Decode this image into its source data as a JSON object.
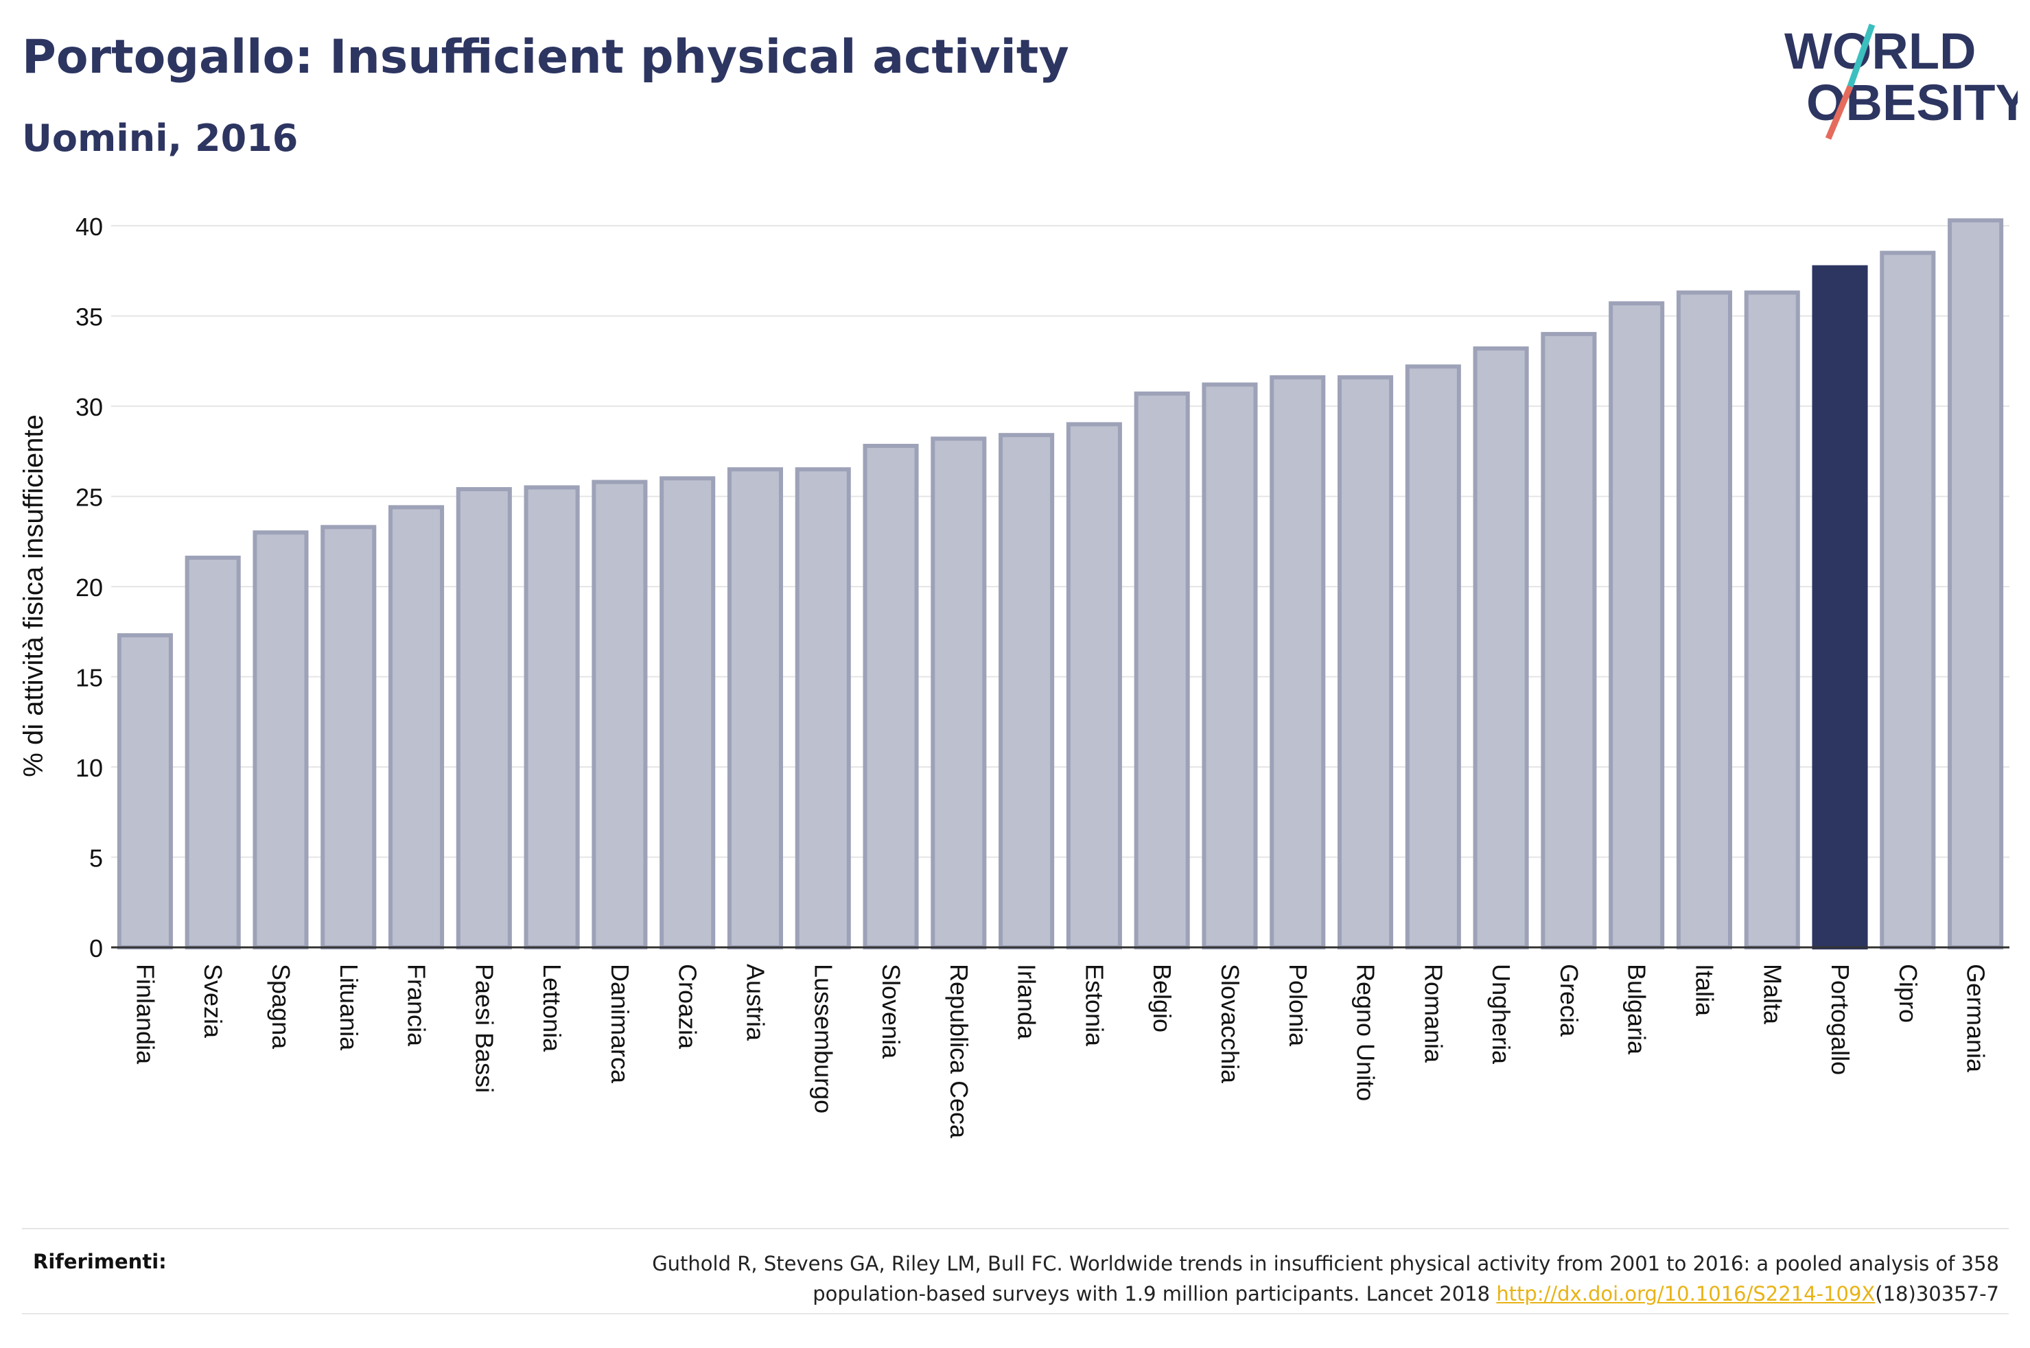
{
  "title": "Portogallo: Insufficient physical activity",
  "subtitle": "Uomini, 2016",
  "logo": {
    "line1": "WORLD",
    "line2": "OBESITY"
  },
  "colors": {
    "highlight": "#2d3561",
    "bar_fill": "#bcc0cf",
    "bar_stroke": "#9da2b8",
    "grid": "#e5e5e5",
    "slash_teal": "#3bbfbf",
    "slash_coral": "#e56b5d"
  },
  "chart_data": {
    "type": "bar",
    "ylabel": "% di attività fisica insufficiente",
    "xlabel": "",
    "ylim": [
      0,
      40.5
    ],
    "yticks": [
      0,
      5,
      10,
      15,
      20,
      25,
      30,
      35,
      40
    ],
    "grid": true,
    "highlight": "Portogallo",
    "categories": [
      "Finlandia",
      "Svezia",
      "Spagna",
      "Lituania",
      "Francia",
      "Paesi Bassi",
      "Lettonia",
      "Danimarca",
      "Croazia",
      "Austria",
      "Lussemburgo",
      "Slovenia",
      "Republica Ceca",
      "Irlanda",
      "Estonia",
      "Belgio",
      "Slovacchia",
      "Polonia",
      "Regno Unito",
      "Romania",
      "Ungheria",
      "Grecia",
      "Bulgaria",
      "Italia",
      "Malta",
      "Portogallo",
      "Cipro",
      "Germania"
    ],
    "values": [
      17.3,
      21.6,
      23.0,
      23.3,
      24.4,
      25.4,
      25.5,
      25.8,
      26.0,
      26.5,
      26.5,
      27.8,
      28.2,
      28.4,
      29.0,
      30.7,
      31.2,
      31.6,
      31.6,
      32.2,
      33.2,
      34.0,
      35.7,
      36.3,
      36.3,
      37.7,
      38.5,
      40.3
    ]
  },
  "references": {
    "label": "Riferimenti:",
    "text1": "Guthold R, Stevens GA, Riley LM, Bull FC. Worldwide trends in insufficient physical activity from 2001 to 2016: a pooled analysis of 358",
    "text2": "population-based surveys with 1.9 million participants. Lancet 2018 ",
    "link": "http://dx.doi.org/10.1016/S2214-109X",
    "text3": "(18)30357-7"
  }
}
